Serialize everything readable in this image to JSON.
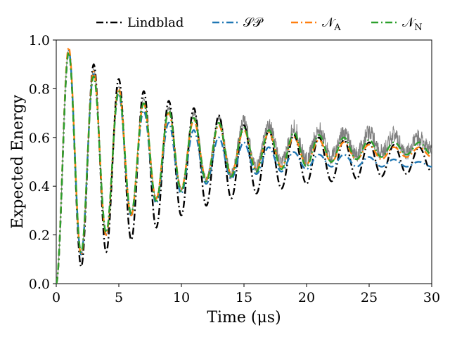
{
  "chart_data": {
    "type": "line",
    "xlabel": "Time (μs)",
    "ylabel": "Expected Energy",
    "xlim": [
      0,
      30
    ],
    "ylim": [
      0,
      1
    ],
    "xticks": [
      0,
      5,
      10,
      15,
      20,
      25,
      30
    ],
    "yticks": [
      0.0,
      0.2,
      0.4,
      0.6,
      0.8,
      1.0
    ],
    "ytick_labels": [
      "0.0",
      "0.2",
      "0.4",
      "0.6",
      "0.8",
      "1.0"
    ],
    "grid": false,
    "legend_position": "top, outside plot, single row",
    "series": [
      {
        "name": "Lindblad",
        "color": "#000000",
        "style": "dashdot",
        "peaks": [
          [
            1.0,
            0.95
          ],
          [
            3.0,
            0.9
          ],
          [
            5.0,
            0.84
          ],
          [
            7.0,
            0.79
          ],
          [
            9.0,
            0.75
          ],
          [
            11.0,
            0.72
          ],
          [
            13.0,
            0.69
          ],
          [
            15.0,
            0.65
          ],
          [
            17.0,
            0.63
          ],
          [
            19.0,
            0.61
          ],
          [
            21.0,
            0.6
          ],
          [
            23.0,
            0.59
          ],
          [
            25.0,
            0.58
          ],
          [
            27.0,
            0.57
          ],
          [
            29.0,
            0.56
          ]
        ],
        "troughs": [
          [
            0.0,
            0.0
          ],
          [
            2.0,
            0.07
          ],
          [
            4.0,
            0.13
          ],
          [
            6.0,
            0.18
          ],
          [
            8.0,
            0.23
          ],
          [
            10.0,
            0.28
          ],
          [
            12.0,
            0.32
          ],
          [
            14.0,
            0.35
          ],
          [
            16.0,
            0.37
          ],
          [
            18.0,
            0.39
          ],
          [
            20.0,
            0.41
          ],
          [
            22.0,
            0.42
          ],
          [
            24.0,
            0.43
          ],
          [
            26.0,
            0.44
          ],
          [
            28.0,
            0.45
          ],
          [
            30.0,
            0.46
          ]
        ]
      },
      {
        "name": "SP",
        "display_name": "𝒮𝒫",
        "color": "#1f77b4",
        "style": "dashdot",
        "peaks": [
          [
            1.0,
            0.96
          ],
          [
            3.0,
            0.86
          ],
          [
            5.0,
            0.78
          ],
          [
            7.0,
            0.71
          ],
          [
            9.0,
            0.66
          ],
          [
            11.0,
            0.63
          ],
          [
            13.0,
            0.6
          ],
          [
            15.0,
            0.58
          ],
          [
            17.0,
            0.56
          ],
          [
            19.0,
            0.54
          ],
          [
            21.0,
            0.53
          ],
          [
            23.0,
            0.53
          ],
          [
            25.0,
            0.52
          ],
          [
            27.0,
            0.51
          ],
          [
            29.0,
            0.5
          ]
        ],
        "troughs": [
          [
            0.0,
            0.0
          ],
          [
            2.0,
            0.12
          ],
          [
            4.0,
            0.21
          ],
          [
            6.0,
            0.28
          ],
          [
            8.0,
            0.33
          ],
          [
            10.0,
            0.37
          ],
          [
            12.0,
            0.41
          ],
          [
            14.0,
            0.43
          ],
          [
            16.0,
            0.45
          ],
          [
            18.0,
            0.46
          ],
          [
            20.0,
            0.47
          ],
          [
            22.0,
            0.48
          ],
          [
            24.0,
            0.48
          ],
          [
            26.0,
            0.48
          ],
          [
            28.0,
            0.48
          ],
          [
            30.0,
            0.48
          ]
        ]
      },
      {
        "name": "N_A",
        "display_name": "𝒩",
        "display_sub": "A",
        "color": "#ff7f0e",
        "style": "dashdot",
        "peaks": [
          [
            1.0,
            0.97
          ],
          [
            3.0,
            0.87
          ],
          [
            5.0,
            0.8
          ],
          [
            7.0,
            0.74
          ],
          [
            9.0,
            0.7
          ],
          [
            11.0,
            0.67
          ],
          [
            13.0,
            0.65
          ],
          [
            15.0,
            0.63
          ],
          [
            17.0,
            0.62
          ],
          [
            19.0,
            0.6
          ],
          [
            21.0,
            0.59
          ],
          [
            23.0,
            0.58
          ],
          [
            25.0,
            0.57
          ],
          [
            27.0,
            0.56
          ],
          [
            29.0,
            0.56
          ]
        ],
        "troughs": [
          [
            0.0,
            0.0
          ],
          [
            2.0,
            0.12
          ],
          [
            4.0,
            0.2
          ],
          [
            6.0,
            0.28
          ],
          [
            8.0,
            0.35
          ],
          [
            10.0,
            0.39
          ],
          [
            12.0,
            0.43
          ],
          [
            14.0,
            0.45
          ],
          [
            16.0,
            0.47
          ],
          [
            18.0,
            0.48
          ],
          [
            20.0,
            0.49
          ],
          [
            22.0,
            0.5
          ],
          [
            24.0,
            0.51
          ],
          [
            26.0,
            0.51
          ],
          [
            28.0,
            0.52
          ],
          [
            30.0,
            0.52
          ]
        ]
      },
      {
        "name": "N_N",
        "display_name": "𝒩",
        "display_sub": "N",
        "color": "#2ca02c",
        "style": "dashdot",
        "peaks": [
          [
            1.0,
            0.95
          ],
          [
            3.0,
            0.85
          ],
          [
            5.0,
            0.79
          ],
          [
            7.0,
            0.74
          ],
          [
            9.0,
            0.71
          ],
          [
            11.0,
            0.68
          ],
          [
            13.0,
            0.66
          ],
          [
            15.0,
            0.64
          ],
          [
            17.0,
            0.63
          ],
          [
            19.0,
            0.62
          ],
          [
            21.0,
            0.61
          ],
          [
            23.0,
            0.6
          ],
          [
            25.0,
            0.59
          ],
          [
            27.0,
            0.58
          ],
          [
            29.0,
            0.58
          ]
        ],
        "troughs": [
          [
            0.0,
            0.0
          ],
          [
            2.0,
            0.13
          ],
          [
            4.0,
            0.21
          ],
          [
            6.0,
            0.29
          ],
          [
            8.0,
            0.34
          ],
          [
            10.0,
            0.38
          ],
          [
            12.0,
            0.42
          ],
          [
            14.0,
            0.44
          ],
          [
            16.0,
            0.46
          ],
          [
            18.0,
            0.47
          ],
          [
            20.0,
            0.48
          ],
          [
            22.0,
            0.5
          ],
          [
            24.0,
            0.51
          ],
          [
            26.0,
            0.52
          ],
          [
            28.0,
            0.53
          ],
          [
            30.0,
            0.53
          ]
        ]
      }
    ],
    "noise_band": {
      "color": "#808080",
      "peaks": [
        [
          1.0,
          0.96
        ],
        [
          3.0,
          0.88
        ],
        [
          5.0,
          0.81
        ],
        [
          7.0,
          0.76
        ],
        [
          9.0,
          0.72
        ],
        [
          11.0,
          0.7
        ],
        [
          13.0,
          0.68
        ],
        [
          15.0,
          0.67
        ],
        [
          17.0,
          0.65
        ],
        [
          19.0,
          0.64
        ],
        [
          21.0,
          0.63
        ],
        [
          23.0,
          0.62
        ],
        [
          25.0,
          0.62
        ],
        [
          27.0,
          0.61
        ],
        [
          29.0,
          0.6
        ]
      ],
      "troughs": [
        [
          0.0,
          0.0
        ],
        [
          2.0,
          0.12
        ],
        [
          4.0,
          0.2
        ],
        [
          6.0,
          0.29
        ],
        [
          8.0,
          0.35
        ],
        [
          10.0,
          0.39
        ],
        [
          12.0,
          0.43
        ],
        [
          14.0,
          0.45
        ],
        [
          16.0,
          0.48
        ],
        [
          18.0,
          0.49
        ],
        [
          20.0,
          0.51
        ],
        [
          22.0,
          0.52
        ],
        [
          24.0,
          0.53
        ],
        [
          26.0,
          0.54
        ],
        [
          28.0,
          0.54
        ],
        [
          30.0,
          0.55
        ]
      ],
      "max_jitter": 0.035
    }
  }
}
